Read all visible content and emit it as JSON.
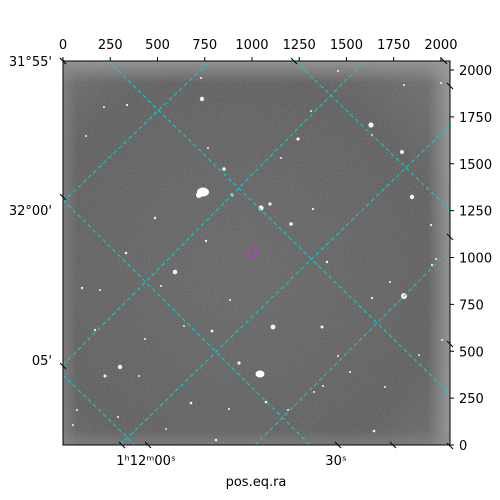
{
  "chart_data": {
    "type": "image",
    "xlabel": "pos.eq.ra",
    "ylabel": "",
    "pixel_axis_x": {
      "range": [
        0,
        2048
      ],
      "ticks": [
        0,
        250,
        500,
        750,
        1000,
        1250,
        1500,
        1750,
        2000
      ]
    },
    "pixel_axis_y": {
      "range": [
        0,
        2048
      ],
      "ticks": [
        0,
        250,
        500,
        750,
        1000,
        1250,
        1500,
        1750,
        2000
      ]
    },
    "dec_ticks": [
      "31°55'",
      "32°00'",
      "05'"
    ],
    "ra_ticks": [
      "1ʰ12ᵐ00ˢ",
      "30ˢ"
    ],
    "grid": true,
    "grid_color": "#00d5d5",
    "marker": {
      "shape": "circle",
      "color": "#cc33cc",
      "x": 1000,
      "y": 1030
    },
    "image_colormap": "gray"
  }
}
